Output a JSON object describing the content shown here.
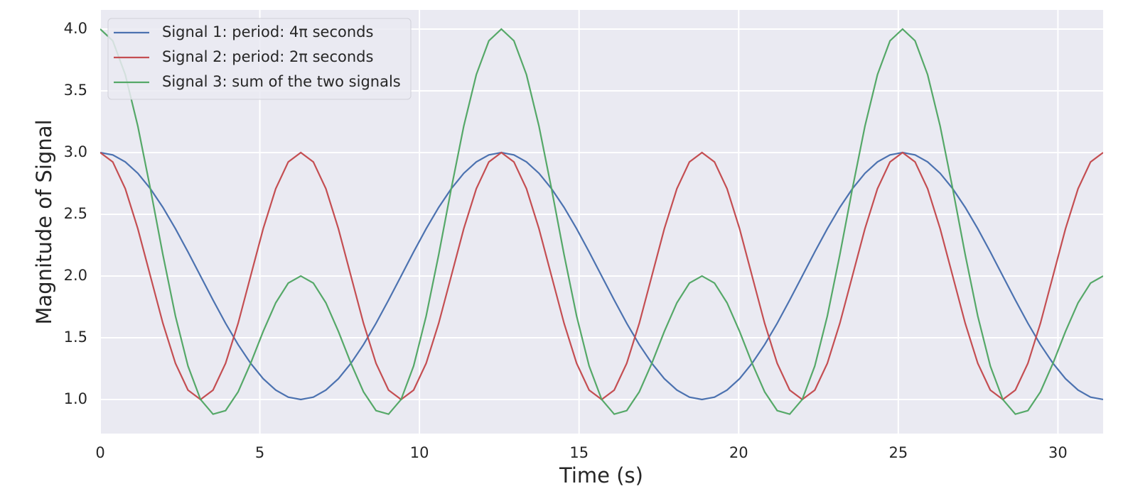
{
  "chart_data": {
    "type": "line",
    "xlabel": "Time (s)",
    "ylabel": "Magnitude of Signal",
    "x": [
      0,
      0.393,
      0.785,
      1.178,
      1.571,
      1.963,
      2.356,
      2.749,
      3.142,
      3.534,
      3.927,
      4.32,
      4.712,
      5.105,
      5.498,
      5.89,
      6.283,
      6.676,
      7.069,
      7.461,
      7.854,
      8.247,
      8.639,
      9.032,
      9.425,
      9.817,
      10.21,
      10.603,
      10.996,
      11.388,
      11.781,
      12.174,
      12.566,
      12.959,
      13.352,
      13.744,
      14.137,
      14.53,
      14.923,
      15.315,
      15.708,
      16.101,
      16.493,
      16.886,
      17.279,
      17.671,
      18.064,
      18.457,
      18.85,
      19.242,
      19.635,
      20.028,
      20.42,
      20.813,
      21.206,
      21.598,
      21.991,
      22.384,
      22.777,
      23.169,
      23.562,
      23.955,
      24.347,
      24.74,
      25.133,
      25.525,
      25.918,
      26.311,
      26.704,
      27.096,
      27.489,
      27.882,
      28.274,
      28.667,
      29.06,
      29.452,
      29.845,
      30.238,
      30.631,
      31.023,
      31.416
    ],
    "series": [
      {
        "name": "Signal 1: period: 4π seconds",
        "color": "#4c72b0",
        "values": [
          3,
          2.981,
          2.924,
          2.832,
          2.707,
          2.556,
          2.383,
          2.195,
          2,
          1.805,
          1.617,
          1.444,
          1.293,
          1.168,
          1.076,
          1.019,
          1,
          1.019,
          1.076,
          1.168,
          1.293,
          1.444,
          1.617,
          1.805,
          2,
          2.195,
          2.383,
          2.556,
          2.707,
          2.832,
          2.924,
          2.981,
          3,
          2.981,
          2.924,
          2.832,
          2.707,
          2.556,
          2.383,
          2.195,
          2,
          1.805,
          1.617,
          1.444,
          1.293,
          1.168,
          1.076,
          1.019,
          1,
          1.019,
          1.076,
          1.168,
          1.293,
          1.444,
          1.617,
          1.805,
          2,
          2.195,
          2.383,
          2.556,
          2.707,
          2.832,
          2.924,
          2.981,
          3,
          2.981,
          2.924,
          2.832,
          2.707,
          2.556,
          2.383,
          2.195,
          2,
          1.805,
          1.617,
          1.444,
          1.293,
          1.168,
          1.076,
          1.019,
          1
        ]
      },
      {
        "name": "Signal 2: period: 2π seconds",
        "color": "#c44e52",
        "values": [
          3,
          2.924,
          2.707,
          2.383,
          2,
          1.617,
          1.293,
          1.076,
          1,
          1.076,
          1.293,
          1.617,
          2,
          2.383,
          2.707,
          2.924,
          3,
          2.924,
          2.707,
          2.383,
          2,
          1.617,
          1.293,
          1.076,
          1,
          1.076,
          1.293,
          1.617,
          2,
          2.383,
          2.707,
          2.924,
          3,
          2.924,
          2.707,
          2.383,
          2,
          1.617,
          1.293,
          1.076,
          1,
          1.076,
          1.293,
          1.617,
          2,
          2.383,
          2.707,
          2.924,
          3,
          2.924,
          2.707,
          2.383,
          2,
          1.617,
          1.293,
          1.076,
          1,
          1.076,
          1.293,
          1.617,
          2,
          2.383,
          2.707,
          2.924,
          3,
          2.924,
          2.707,
          2.383,
          2,
          1.617,
          1.293,
          1.076,
          1,
          1.076,
          1.293,
          1.617,
          2,
          2.383,
          2.707,
          2.924,
          3
        ]
      },
      {
        "name": "Signal 3: sum of the two signals",
        "color": "#55a868",
        "values": [
          4,
          3.905,
          3.631,
          3.214,
          2.707,
          2.173,
          1.676,
          1.271,
          1,
          0.881,
          0.91,
          1.062,
          1.293,
          1.551,
          1.783,
          1.943,
          2,
          1.943,
          1.783,
          1.551,
          1.293,
          1.062,
          0.91,
          0.881,
          1,
          1.271,
          1.676,
          2.173,
          2.707,
          3.214,
          3.631,
          3.905,
          4,
          3.905,
          3.631,
          3.214,
          2.707,
          2.173,
          1.676,
          1.271,
          1,
          0.881,
          0.91,
          1.062,
          1.293,
          1.551,
          1.783,
          1.943,
          2,
          1.943,
          1.783,
          1.551,
          1.293,
          1.062,
          0.91,
          0.881,
          1,
          1.271,
          1.676,
          2.173,
          2.707,
          3.214,
          3.631,
          3.905,
          4,
          3.905,
          3.631,
          3.214,
          2.707,
          2.173,
          1.676,
          1.271,
          1,
          0.881,
          0.91,
          1.062,
          1.293,
          1.551,
          1.783,
          1.943,
          2
        ]
      }
    ],
    "xlim": [
      0,
      31.416
    ],
    "ylim": [
      0.724,
      4.155
    ],
    "xticks": [
      0,
      5,
      10,
      15,
      20,
      25,
      30
    ],
    "yticks": [
      {
        "value": 1,
        "label": "1.0"
      },
      {
        "value": 1.5,
        "label": "1.5"
      },
      {
        "value": 2,
        "label": "2.0"
      },
      {
        "value": 2.5,
        "label": "2.5"
      },
      {
        "value": 3,
        "label": "3.0"
      },
      {
        "value": 3.5,
        "label": "3.5"
      },
      {
        "value": 4,
        "label": "4.0"
      }
    ],
    "grid": true,
    "legend": "upper-left"
  }
}
